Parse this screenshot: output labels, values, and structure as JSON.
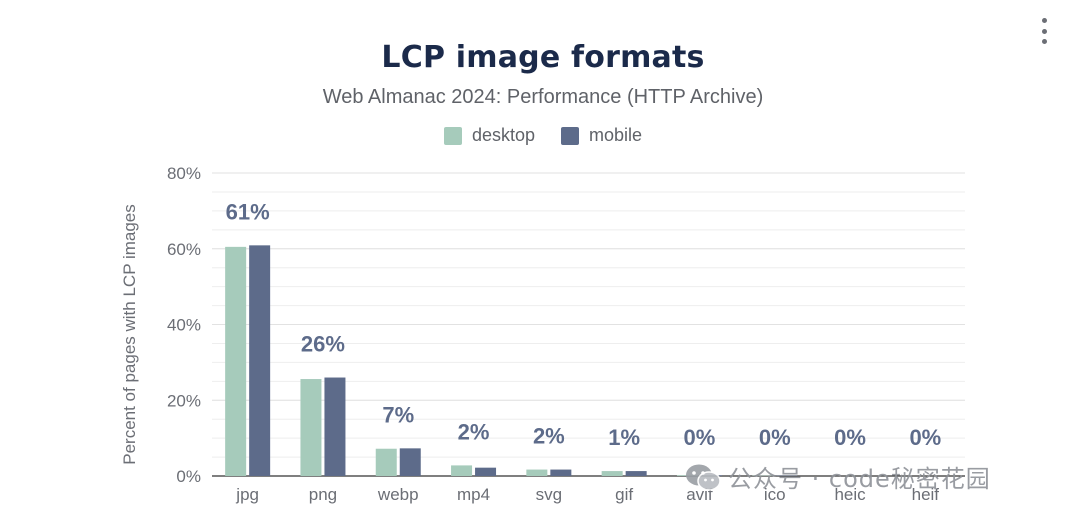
{
  "menu": {
    "icon": "more-vertical-icon"
  },
  "chart_data": {
    "type": "bar",
    "title": "LCP image formats",
    "subtitle": "Web Almanac 2024: Performance (HTTP Archive)",
    "xlabel": "",
    "ylabel": "Percent of pages with LCP images",
    "categories": [
      "jpg",
      "png",
      "webp",
      "mp4",
      "svg",
      "gif",
      "avif",
      "ico",
      "heic",
      "heif"
    ],
    "series": [
      {
        "name": "desktop",
        "color": "#a6cbbb",
        "values": [
          60.5,
          25.6,
          7.2,
          2.8,
          1.7,
          1.3,
          0.2,
          0.1,
          0.0,
          0.0
        ]
      },
      {
        "name": "mobile",
        "color": "#5d6b8a",
        "values": [
          60.9,
          26.0,
          7.3,
          2.2,
          1.7,
          1.3,
          0.2,
          0.1,
          0.0,
          0.0
        ]
      }
    ],
    "data_labels": [
      "61%",
      "26%",
      "7%",
      "2%",
      "2%",
      "1%",
      "0%",
      "0%",
      "0%",
      "0%"
    ],
    "ylim": [
      0,
      80
    ],
    "yticks": [
      0,
      20,
      40,
      60,
      80
    ],
    "ytick_labels": [
      "0%",
      "20%",
      "40%",
      "60%",
      "80%"
    ],
    "minor_grid_step": 5,
    "grid": true,
    "legend_position": "top-center"
  },
  "watermark": {
    "text": "公众号 · code秘密花园",
    "icon": "wechat-icon"
  }
}
